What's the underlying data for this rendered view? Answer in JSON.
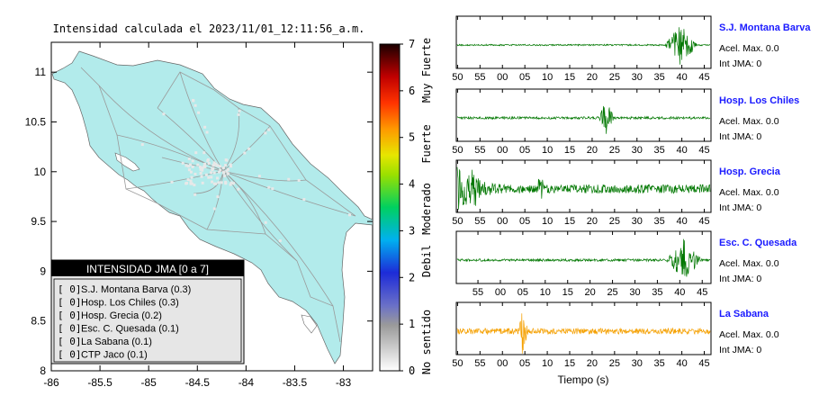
{
  "map": {
    "title": "Intensidad calculada el 2023/11/01_12:11:56_a.m.",
    "xticks": [
      "-86",
      "-85.5",
      "-85",
      "-84.5",
      "-84",
      "-83.5",
      "-83"
    ],
    "yticks": [
      "11",
      "10.5",
      "10",
      "9.5",
      "9",
      "8.5",
      "8"
    ],
    "xlim": [
      -86,
      -82.7
    ],
    "ylim": [
      8,
      11.3
    ],
    "land_color": "#b2ebeb",
    "legend": {
      "title": "INTENSIDAD JMA [0 a 7]",
      "items": [
        {
          "bracket": "[ 0]",
          "name": "S.J. Montana Barva (0.3)"
        },
        {
          "bracket": "[ 0]",
          "name": "Hosp. Los Chiles (0.3)"
        },
        {
          "bracket": "[ 0]",
          "name": "Hosp. Grecia (0.2)"
        },
        {
          "bracket": "[ 0]",
          "name": "Esc. C. Quesada (0.1)"
        },
        {
          "bracket": "[ 0]",
          "name": "La Sabana (0.1)"
        },
        {
          "bracket": "[ 0]",
          "name": "CTP Jaco (0.1)"
        }
      ]
    }
  },
  "colorbar": {
    "ticks": [
      "7",
      "6",
      "5",
      "4",
      "3",
      "2",
      "1",
      "0"
    ],
    "range": [
      0,
      7
    ],
    "labels": [
      "Muy Fuerte",
      "Fuerte",
      "Moderado",
      "Debil",
      "No sentido"
    ]
  },
  "chart_data": {
    "type": "line",
    "xlabel": "Tiempo (s)",
    "series": [
      {
        "name": "S.J. Montana Barva",
        "acel": "Acel. Max. 0.0",
        "int": "Int JMA: 0",
        "ticks": [
          "50",
          "55",
          "00",
          "05",
          "10",
          "15",
          "20",
          "25",
          "30",
          "35",
          "40",
          "45"
        ],
        "color": "#007700",
        "burst": [
          0.82,
          0.95
        ],
        "noise": 0.03,
        "amp": 0.9
      },
      {
        "name": "Hosp. Los Chiles",
        "acel": "Acel. Max. 0.0",
        "int": "Int JMA: 0",
        "ticks": [
          "50",
          "55",
          "00",
          "05",
          "10",
          "15",
          "20",
          "25",
          "30",
          "35",
          "40",
          "45"
        ],
        "color": "#007700",
        "burst": [
          0.56,
          0.62
        ],
        "noise": 0.05,
        "amp": 0.85
      },
      {
        "name": "Hosp. Grecia",
        "acel": "Acel. Max. 0.0",
        "int": "Int JMA: 0",
        "ticks": [
          "50",
          "55",
          "00",
          "05",
          "10",
          "15",
          "20",
          "25",
          "30",
          "35",
          "40",
          "45"
        ],
        "color": "#007700",
        "burst": [
          0.0,
          0.12
        ],
        "noise": 0.18,
        "amp": 0.9
      },
      {
        "name": "Esc. C. Quesada",
        "acel": "Acel. Max. 0.0",
        "int": "Int JMA: 0",
        "ticks": [
          "55",
          "00",
          "05",
          "10",
          "15",
          "20",
          "25",
          "30",
          "35",
          "40",
          "45"
        ],
        "color": "#007700",
        "burst": [
          0.82,
          0.97
        ],
        "noise": 0.05,
        "amp": 0.9
      },
      {
        "name": "La Sabana",
        "acel": "Acel. Max. 0.0",
        "int": "Int JMA: 0",
        "ticks": [
          "50",
          "55",
          "00",
          "05",
          "10",
          "15",
          "20",
          "25",
          "30",
          "35",
          "40",
          "45"
        ],
        "color": "#f5a000",
        "burst": [
          0.24,
          0.28
        ],
        "noise": 0.12,
        "amp": 0.9
      }
    ]
  }
}
